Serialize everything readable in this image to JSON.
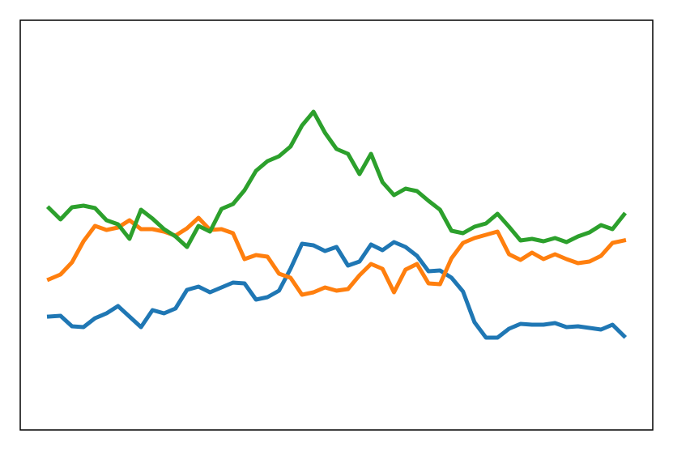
{
  "chart_data": {
    "type": "line",
    "x": [
      0,
      1,
      2,
      3,
      4,
      5,
      6,
      7,
      8,
      9,
      10,
      11,
      12,
      13,
      14,
      15,
      16,
      17,
      18,
      19,
      20,
      21,
      22,
      23,
      24,
      25,
      26,
      27,
      28,
      29,
      30,
      31,
      32,
      33,
      34,
      35,
      36,
      37,
      38,
      39,
      40,
      41,
      42,
      43,
      44,
      45,
      46,
      47,
      48,
      49,
      50
    ],
    "xlim": [
      -2.5,
      52.5
    ],
    "ylim": [
      0,
      506
    ],
    "series": [
      {
        "color": "#1f77b4",
        "values": [
          140,
          141,
          128,
          127,
          138,
          144,
          153,
          140,
          127,
          148,
          144,
          150,
          173,
          177,
          170,
          176,
          182,
          181,
          161,
          164,
          172,
          199,
          230,
          228,
          221,
          226,
          203,
          208,
          229,
          222,
          232,
          226,
          215,
          196,
          197,
          188,
          171,
          133,
          114,
          114,
          125,
          131,
          130,
          130,
          132,
          127,
          128,
          126,
          124,
          130,
          116
        ]
      },
      {
        "color": "#ff7f0e",
        "values": [
          186,
          192,
          207,
          233,
          252,
          247,
          250,
          259,
          248,
          248,
          245,
          240,
          249,
          262,
          247,
          248,
          243,
          211,
          216,
          214,
          193,
          188,
          167,
          170,
          176,
          172,
          174,
          191,
          205,
          199,
          170,
          198,
          205,
          181,
          180,
          212,
          231,
          237,
          241,
          245,
          217,
          210,
          219,
          211,
          217,
          211,
          206,
          208,
          215,
          231,
          234
        ]
      },
      {
        "color": "#2ca02c",
        "values": [
          274,
          260,
          275,
          277,
          274,
          259,
          254,
          236,
          272,
          261,
          248,
          239,
          226,
          252,
          245,
          273,
          279,
          296,
          320,
          332,
          338,
          350,
          376,
          393,
          367,
          347,
          341,
          316,
          341,
          306,
          290,
          298,
          295,
          283,
          272,
          246,
          243,
          251,
          255,
          267,
          251,
          234,
          236,
          233,
          237,
          232,
          239,
          244,
          253,
          248,
          266
        ]
      }
    ]
  }
}
